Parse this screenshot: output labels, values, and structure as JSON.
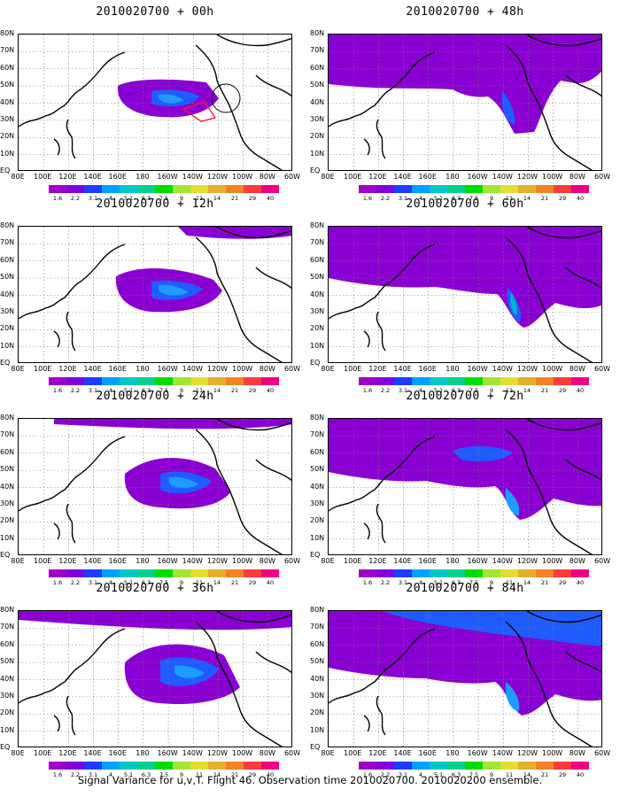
{
  "panels": [
    {
      "title": "2010020700 + 00h"
    },
    {
      "title": "2010020700 + 48h"
    },
    {
      "title": "2010020700 + 12h"
    },
    {
      "title": "2010020700 + 60h"
    },
    {
      "title": "2010020700 + 24h"
    },
    {
      "title": "2010020700 + 72h"
    },
    {
      "title": "2010020700 + 36h"
    },
    {
      "title": "2010020700 + 84h"
    }
  ],
  "lat_labels": [
    "80N",
    "70N",
    "60N",
    "50N",
    "40N",
    "30N",
    "20N",
    "10N",
    "EQ"
  ],
  "lon_labels": [
    "80E",
    "100E",
    "120E",
    "140E",
    "160E",
    "180",
    "160W",
    "140W",
    "120W",
    "100W",
    "80W",
    "60W"
  ],
  "colorbar": {
    "levels": [
      "1.6",
      "2.2",
      "3.1",
      "4",
      "5.1",
      "6.3",
      "7.5",
      "9",
      "11",
      "14",
      "21",
      "29",
      "40"
    ],
    "colors": [
      "#a000c8",
      "#8200dc",
      "#1e3cff",
      "#00a0ff",
      "#00c8c8",
      "#00d28c",
      "#00dc00",
      "#a0e632",
      "#e6dc32",
      "#e6af2d",
      "#f08228",
      "#fa3c3c",
      "#f00082"
    ]
  },
  "caption": "Signal Variance for u,v,T. Flight 46. Observation time 2010020700. 2010020200 ensemble."
}
